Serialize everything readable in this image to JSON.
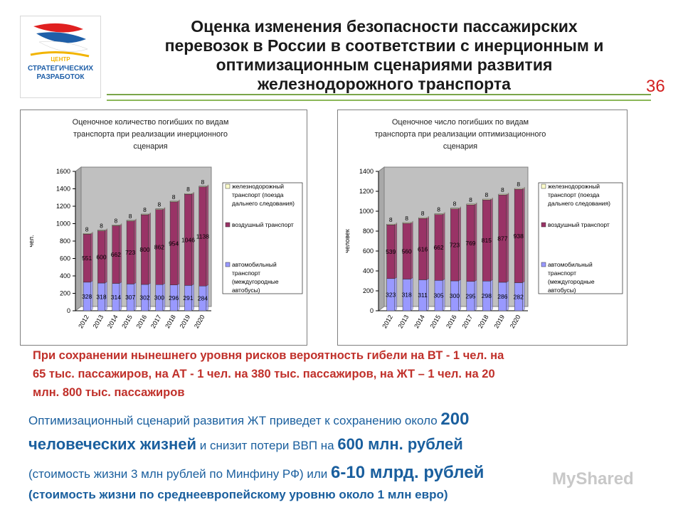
{
  "logo": {
    "text_line1": "ЦЕНТР",
    "text_line2": "СТРАТЕГИЧЕСКИХ",
    "text_line3": "РАЗРАБОТОК",
    "colors": [
      "#e02020",
      "#1f5fa8",
      "#f2b400"
    ]
  },
  "title": {
    "line1": "Оценка изменения безопасности пассажирских",
    "line2": "перевозок в России в соответствии с инерционным и",
    "line3": "оптимизационным сценариями развития",
    "line4": "железнодорожного транспорта"
  },
  "page_number": "36",
  "chart_data": [
    {
      "type": "bar",
      "stacked": true,
      "title": "Оценочное количество погибших по видам транспорта при реализации инерционного сценария",
      "title_lines": [
        "Оценочное количество погибших по видам",
        "транспорта при реализации инерционного",
        "сценария"
      ],
      "ylabel": "чел.",
      "xlabel": "",
      "ylim": [
        0,
        1600
      ],
      "yticks": [
        "0",
        "200",
        "400",
        "600",
        "800",
        "1000",
        "1200",
        "1400",
        "1600"
      ],
      "categories": [
        "2012",
        "2013",
        "2014",
        "2015",
        "2016",
        "2017",
        "2018",
        "2019",
        "2020"
      ],
      "series": [
        {
          "name": "автомобильный транспорт (междугородные автобусы)",
          "legend_lines": [
            "автомобильный",
            "транспорт",
            "(междугородные",
            "автобусы)"
          ],
          "color": "#9999ff",
          "values": [
            328,
            318,
            314,
            307,
            302,
            300,
            296,
            291,
            284
          ],
          "labels": [
            "328",
            "318",
            "314",
            "307",
            "302",
            "300",
            "296",
            "291",
            "284"
          ]
        },
        {
          "name": "воздушный транспорт",
          "legend_lines": [
            "воздушный транспорт"
          ],
          "color": "#993366",
          "values": [
            551,
            600,
            662,
            723,
            800,
            862,
            954,
            1046,
            1138
          ],
          "labels": [
            "551",
            "600",
            "662",
            "723",
            "800",
            "862",
            "954",
            "1046",
            "1138"
          ]
        },
        {
          "name": "железнодорожный транспорт (поезда дальнего следования)",
          "legend_lines": [
            "железнодорожный",
            "транспорт (поезда",
            "дальнего следования)"
          ],
          "color": "#ffffcc",
          "values": [
            8,
            8,
            8,
            8,
            8,
            8,
            8,
            8,
            8
          ],
          "labels": [
            "8",
            "8",
            "8",
            "8",
            "8",
            "8",
            "8",
            "8",
            "8"
          ]
        }
      ],
      "grid": false,
      "legend": "right",
      "plot_bg": "#c0c0c0"
    },
    {
      "type": "bar",
      "stacked": true,
      "title": "Оценочное число погибших по видам транспорта при реализации оптимизационного сценария",
      "title_lines": [
        "Оценочное число погибших по видам",
        "транспорта при реализации оптимизационного",
        "сценария"
      ],
      "ylabel": "человек",
      "xlabel": "",
      "ylim": [
        0,
        1400
      ],
      "yticks": [
        "0",
        "200",
        "400",
        "600",
        "800",
        "1000",
        "1200",
        "1400"
      ],
      "categories": [
        "2012",
        "2013",
        "2014",
        "2015",
        "2016",
        "2017",
        "2018",
        "2019",
        "2020"
      ],
      "series": [
        {
          "name": "автомобильный транспорт (междугородные автобусы)",
          "legend_lines": [
            "автомобильный",
            "транспорт",
            "(междугородные",
            "автобусы)"
          ],
          "color": "#9999ff",
          "values": [
            323,
            318,
            311,
            305,
            300,
            295,
            298,
            286,
            282
          ],
          "labels": [
            "323",
            "318",
            "311",
            "305",
            "300",
            "295",
            "298",
            "286",
            "282"
          ]
        },
        {
          "name": "воздушный транспорт",
          "legend_lines": [
            "воздушный транспорт"
          ],
          "color": "#993366",
          "values": [
            539,
            560,
            616,
            662,
            723,
            769,
            815,
            877,
            938
          ],
          "labels": [
            "539",
            "560",
            "616",
            "662",
            "723",
            "769",
            "815",
            "877",
            "938"
          ]
        },
        {
          "name": "железнодорожный транспорт (поезда дальнего следования)",
          "legend_lines": [
            "железнодорожный",
            "транспорт (поезда",
            "дальнего следования)"
          ],
          "color": "#ffffcc",
          "values": [
            8,
            8,
            8,
            8,
            8,
            8,
            8,
            8,
            8
          ],
          "labels": [
            "8",
            "8",
            "8",
            "8",
            "8",
            "8",
            "8",
            "8",
            "8"
          ]
        }
      ],
      "grid": false,
      "legend": "right",
      "plot_bg": "#c0c0c0"
    }
  ],
  "notes": {
    "red_line1": "При сохранении нынешнего уровня рисков вероятность гибели на ВТ - 1 чел. на",
    "red_line2": "65 тыс. пассажиров, на АТ - 1 чел. на 380 тыс. пассажиров, на ЖТ – 1 чел. на 20",
    "red_line3": "млн. 800 тыс. пассажиров",
    "blue1_a": "Оптимизационный сценарий развития ЖТ приведет к сохранению около ",
    "blue1_b": "200",
    "blue2_a": "человеческих жизней",
    "blue2_b": " и снизит потери ВВП на ",
    "blue2_c": "600 млн. рублей",
    "blue3_a": "(стоимость жизни 3 млн рублей по Минфину РФ) или ",
    "blue3_b": "6-10 млрд. рублей",
    "blue4": "(стоимость жизни по среднеевропейскому уровню около 1 млн евро)"
  },
  "watermark": "MyShared"
}
